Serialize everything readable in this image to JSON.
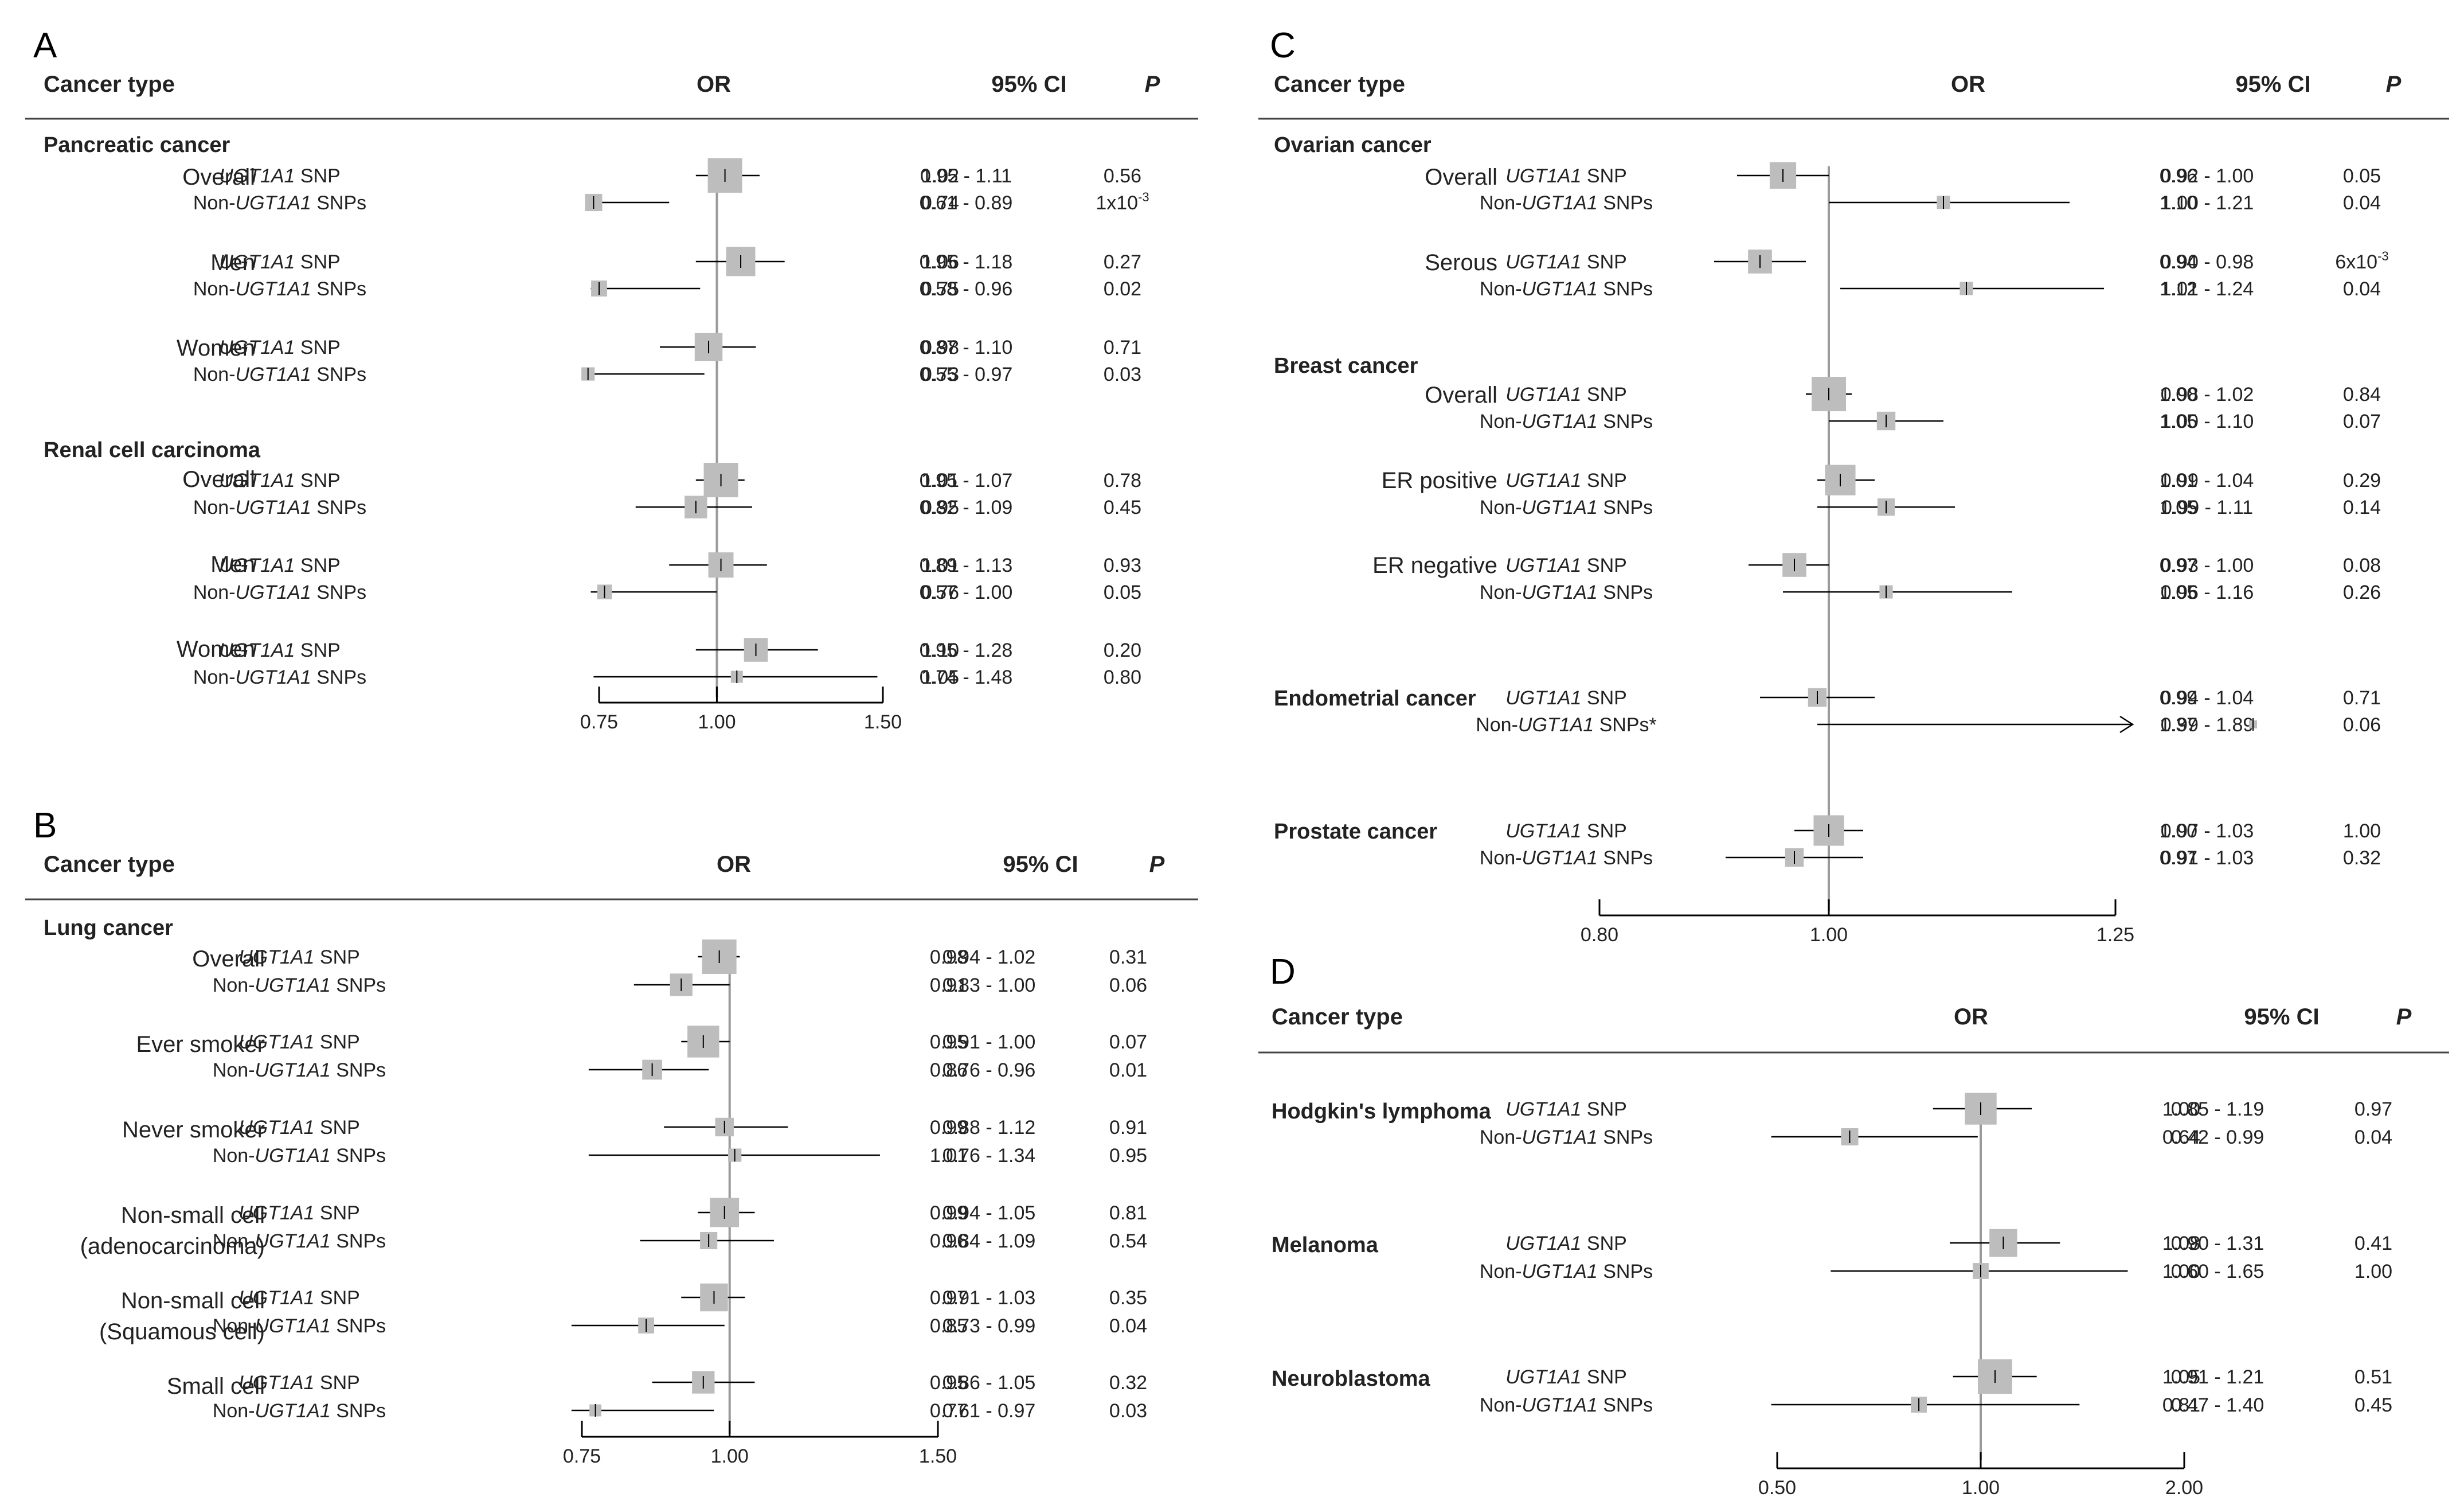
{
  "header_labels": {
    "cancer_type": "Cancer type",
    "or": "OR",
    "ci": "95% CI",
    "p": "P"
  },
  "snp_labels": {
    "gene": "UGT1A1",
    "snp_suffix": " SNP",
    "non_prefix": "Non-",
    "non_suffix": " SNPs"
  },
  "chart_data": [
    {
      "panel": "A",
      "type": "forest",
      "xlabel": "OR",
      "ticks": [
        "0.75",
        "1.00",
        "1.50"
      ],
      "tick_values": [
        0.75,
        1.0,
        1.5
      ],
      "reference": 1.0,
      "groups": [
        {
          "title": "Pancreatic cancer",
          "subgroups": [
            {
              "label": [
                "Overall"
              ],
              "rows": [
                {
                  "snp": "UGT1A1",
                  "or": "1.02",
                  "ci_lo": "0.95",
                  "ci_hi": "1.11",
                  "ci_text": "0.95   - 1.11",
                  "p": "0.56",
                  "w": 1.0
                },
                {
                  "snp": "Non-UGT1A1",
                  "or": "0.74",
                  "ci_lo": "0.61",
                  "ci_hi": "0.89",
                  "ci_text": "0.61   - 0.89",
                  "p": "1x10",
                  "p_exp": "-3",
                  "w": 0.35
                }
              ]
            },
            {
              "label": [
                "Men"
              ],
              "rows": [
                {
                  "snp": "UGT1A1",
                  "or": "1.06",
                  "ci_lo": "0.95",
                  "ci_hi": "1.18",
                  "ci_text": "0.95 - 1.18",
                  "p": "0.27",
                  "w": 0.8
                },
                {
                  "snp": "Non-UGT1A1",
                  "or": "0.75",
                  "ci_lo": "0.58",
                  "ci_hi": "0.96",
                  "ci_text": "0.58 - 0.96",
                  "p": "0.02",
                  "w": 0.3
                }
              ]
            },
            {
              "label": [
                "Women"
              ],
              "rows": [
                {
                  "snp": "UGT1A1",
                  "or": "0.98",
                  "ci_lo": "0.87",
                  "ci_hi": "1.10",
                  "ci_text": "0.87 - 1.10",
                  "p": "0.71",
                  "w": 0.75
                },
                {
                  "snp": "Non-UGT1A1",
                  "or": "0.73",
                  "ci_lo": "0.55",
                  "ci_hi": "0.97",
                  "ci_text": "0.55 - 0.97",
                  "p": "0.03",
                  "w": 0.2
                }
              ]
            }
          ]
        },
        {
          "title": "Renal cell carcinoma",
          "subgroups": [
            {
              "label": [
                "Overall"
              ],
              "rows": [
                {
                  "snp": "UGT1A1",
                  "or": "1.01",
                  "ci_lo": "0.95",
                  "ci_hi": "1.07",
                  "ci_text": "0.95 - 1.07",
                  "p": "0.78",
                  "w": 1.0
                },
                {
                  "snp": "Non-UGT1A1",
                  "or": "0.95",
                  "ci_lo": "0.82",
                  "ci_hi": "1.09",
                  "ci_text": "0.82 - 1.09",
                  "p": "0.45",
                  "w": 0.55
                }
              ]
            },
            {
              "label": [
                "Men"
              ],
              "rows": [
                {
                  "snp": "UGT1A1",
                  "or": "1.01",
                  "ci_lo": "0.89",
                  "ci_hi": "1.13",
                  "ci_text": "0.89 - 1.13",
                  "p": "0.93",
                  "w": 0.65
                },
                {
                  "snp": "Non-UGT1A1",
                  "or": "0.76",
                  "ci_lo": "0.57",
                  "ci_hi": "1.00",
                  "ci_text": "0.57 - 1.00",
                  "p": "0.05",
                  "w": 0.25
                }
              ]
            },
            {
              "label": [
                "Women"
              ],
              "rows": [
                {
                  "snp": "UGT1A1",
                  "or": "1.10",
                  "ci_lo": "0.95",
                  "ci_hi": "1.28",
                  "ci_text": "0.95 - 1.28",
                  "p": "0.20",
                  "w": 0.6
                },
                {
                  "snp": "Non-UGT1A1",
                  "or": "1.05",
                  "ci_lo": "0.74",
                  "ci_hi": "1.48",
                  "ci_text": "0.74 - 1.48",
                  "p": "0.80",
                  "w": 0.15
                }
              ]
            }
          ]
        }
      ]
    },
    {
      "panel": "B",
      "type": "forest",
      "xlabel": "OR",
      "ticks": [
        "0.75",
        "1.00",
        "1.50"
      ],
      "tick_values": [
        0.75,
        1.0,
        1.5
      ],
      "reference": 1.0,
      "groups": [
        {
          "title": "Lung cancer",
          "subgroups": [
            {
              "label": [
                "Overall"
              ],
              "rows": [
                {
                  "snp": "UGT1A1",
                  "or": "0.98",
                  "ci_lo": "0.94",
                  "ci_hi": "1.02",
                  "ci_text": "0.94   - 1.02",
                  "p": "0.31",
                  "w": 1.0
                },
                {
                  "snp": "Non-UGT1A1",
                  "or": "0.91",
                  "ci_lo": "0.83",
                  "ci_hi": "1.00",
                  "ci_text": "0.83   - 1.00",
                  "p": "0.06",
                  "w": 0.55
                }
              ]
            },
            {
              "label": [
                "Ever smoker"
              ],
              "rows": [
                {
                  "snp": "UGT1A1",
                  "or": "0.95",
                  "ci_lo": "0.91",
                  "ci_hi": "1.00",
                  "ci_text": "0.91 - 1.00",
                  "p": "0.07",
                  "w": 0.9
                },
                {
                  "snp": "Non-UGT1A1",
                  "or": "0.86",
                  "ci_lo": "0.76",
                  "ci_hi": "0.96",
                  "ci_text": "0.76 - 0.96",
                  "p": "0.01",
                  "w": 0.45
                }
              ]
            },
            {
              "label": [
                "Never smoker"
              ],
              "rows": [
                {
                  "snp": "UGT1A1",
                  "or": "0.99",
                  "ci_lo": "0.88",
                  "ci_hi": "1.12",
                  "ci_text": "0.88 - 1.12",
                  "p": "0.91",
                  "w": 0.4
                },
                {
                  "snp": "Non-UGT1A1",
                  "or": "1.01",
                  "ci_lo": "0.76",
                  "ci_hi": "1.34",
                  "ci_text": "0.76 - 1.34",
                  "p": "0.95",
                  "w": 0.2
                }
              ]
            },
            {
              "label": [
                "Non-small cell",
                "(adenocarcinoma)"
              ],
              "rows": [
                {
                  "snp": "UGT1A1",
                  "or": "0.99",
                  "ci_lo": "0.94",
                  "ci_hi": "1.05",
                  "ci_text": "0.94 - 1.05",
                  "p": "0.81",
                  "w": 0.8
                },
                {
                  "snp": "Non-UGT1A1",
                  "or": "0.96",
                  "ci_lo": "0.84",
                  "ci_hi": "1.09",
                  "ci_text": "0.84 - 1.09",
                  "p": "0.54",
                  "w": 0.35
                }
              ]
            },
            {
              "label": [
                "Non-small cell",
                "(Squamous cell)"
              ],
              "rows": [
                {
                  "snp": "UGT1A1",
                  "or": "0.97",
                  "ci_lo": "0.91",
                  "ci_hi": "1.03",
                  "ci_text": "0.91 - 1.03",
                  "p": "0.35",
                  "w": 0.75
                },
                {
                  "snp": "Non-UGT1A1",
                  "or": "0.85",
                  "ci_lo": "0.73",
                  "ci_hi": "0.99",
                  "ci_text": "0.73 - 0.99",
                  "p": "0.04",
                  "w": 0.3
                }
              ]
            },
            {
              "label": [
                "Small cell"
              ],
              "rows": [
                {
                  "snp": "UGT1A1",
                  "or": "0.95",
                  "ci_lo": "0.86",
                  "ci_hi": "1.05",
                  "ci_text": "0.86 - 1.05",
                  "p": "0.32",
                  "w": 0.55
                },
                {
                  "snp": "Non-UGT1A1",
                  "or": "0.77",
                  "ci_lo": "0.61",
                  "ci_hi": "0.97",
                  "ci_text": "0.61 - 0.97",
                  "p": "0.03",
                  "w": 0.15
                }
              ]
            }
          ]
        }
      ]
    },
    {
      "panel": "C",
      "type": "forest",
      "xlabel": "OR",
      "ticks": [
        "0.80",
        "1.00",
        "1.25"
      ],
      "tick_values": [
        0.8,
        1.0,
        1.25
      ],
      "reference": 1.0,
      "groups": [
        {
          "title": "Ovarian cancer",
          "subgroups": [
            {
              "label": [
                "Overall"
              ],
              "rows": [
                {
                  "snp": "UGT1A1",
                  "or": "0.96",
                  "ci_lo": "0.92",
                  "ci_hi": "1.00",
                  "ci_text": "0.92   - 1.00",
                  "p": "0.05",
                  "w": 0.7
                },
                {
                  "snp": "Non-UGT1A1",
                  "or": "1.10",
                  "ci_lo": "1.00",
                  "ci_hi": "1.21",
                  "ci_text": "1.00   - 1.21",
                  "p": "0.04",
                  "w": 0.2
                }
              ]
            },
            {
              "label": [
                "Serous"
              ],
              "rows": [
                {
                  "snp": "UGT1A1",
                  "or": "0.94",
                  "ci_lo": "0.90",
                  "ci_hi": "0.98",
                  "ci_text": "0.90 - 0.98",
                  "p": "6x10",
                  "p_exp": "-3",
                  "w": 0.6
                },
                {
                  "snp": "Non-UGT1A1",
                  "or": "1.12",
                  "ci_lo": "1.01",
                  "ci_hi": "1.24",
                  "ci_text": "1.01 - 1.24",
                  "p": "0.04",
                  "w": 0.2
                }
              ]
            }
          ]
        },
        {
          "title": "Breast cancer",
          "subgroups": [
            {
              "label": [
                "Overall"
              ],
              "rows": [
                {
                  "snp": "UGT1A1",
                  "or": "1.00",
                  "ci_lo": "0.98",
                  "ci_hi": "1.02",
                  "ci_text": "0.98 - 1.02",
                  "p": "0.84",
                  "w": 1.0
                },
                {
                  "snp": "Non-UGT1A1",
                  "or": "1.05",
                  "ci_lo": "1.00",
                  "ci_hi": "1.10",
                  "ci_text": "1.00 - 1.10",
                  "p": "0.07",
                  "w": 0.4
                }
              ]
            },
            {
              "label": [
                "ER positive"
              ],
              "rows": [
                {
                  "snp": "UGT1A1",
                  "or": "1.01",
                  "ci_lo": "0.99",
                  "ci_hi": "1.04",
                  "ci_text": "0.99 - 1.04",
                  "p": "0.29",
                  "w": 0.85
                },
                {
                  "snp": "Non-UGT1A1",
                  "or": "1.05",
                  "ci_lo": "0.99",
                  "ci_hi": "1.11",
                  "ci_text": "0.99 - 1.11",
                  "p": "0.14",
                  "w": 0.35
                }
              ]
            },
            {
              "label": [
                "ER negative"
              ],
              "rows": [
                {
                  "snp": "UGT1A1",
                  "or": "0.97",
                  "ci_lo": "0.93",
                  "ci_hi": "1.00",
                  "ci_text": "0.93 - 1.00",
                  "p": "0.08",
                  "w": 0.6
                },
                {
                  "snp": "Non-UGT1A1",
                  "or": "1.05",
                  "ci_lo": "0.96",
                  "ci_hi": "1.16",
                  "ci_text": "0.96 - 1.16",
                  "p": "0.26",
                  "w": 0.2
                }
              ]
            }
          ]
        },
        {
          "title": "Endometrial cancer",
          "inline": true,
          "subgroups": [
            {
              "label": [],
              "rows": [
                {
                  "snp": "UGT1A1",
                  "or": "0.99",
                  "ci_lo": "0.94",
                  "ci_hi": "1.04",
                  "ci_text": "0.94 - 1.04",
                  "p": "0.71",
                  "w": 0.4
                },
                {
                  "snp": "Non-UGT1A1",
                  "or": "1.37",
                  "ci_lo": "0.99",
                  "ci_hi": "1.89",
                  "ci_text": "0.99 - 1.89",
                  "p": "0.06",
                  "w": 0.0,
                  "arrow": true,
                  "star": "*"
                }
              ]
            }
          ]
        },
        {
          "title": "Prostate cancer",
          "inline": true,
          "subgroups": [
            {
              "label": [],
              "rows": [
                {
                  "snp": "UGT1A1",
                  "or": "1.00",
                  "ci_lo": "0.97",
                  "ci_hi": "1.03",
                  "ci_text": "0.97 - 1.03",
                  "p": "1.00",
                  "w": 0.85
                },
                {
                  "snp": "Non-UGT1A1",
                  "or": "0.97",
                  "ci_lo": "0.91",
                  "ci_hi": "1.03",
                  "ci_text": "0.91 - 1.03",
                  "p": "0.32",
                  "w": 0.4
                }
              ]
            }
          ]
        }
      ]
    },
    {
      "panel": "D",
      "type": "forest",
      "xlabel": "OR",
      "ticks": [
        "0.50",
        "1.00",
        "2.00"
      ],
      "tick_values": [
        0.5,
        1.0,
        2.0
      ],
      "reference": 1.0,
      "groups": [
        {
          "title": "Hodgkin's lymphoma",
          "inline": true,
          "subgroups": [
            {
              "label": [],
              "rows": [
                {
                  "snp": "UGT1A1",
                  "or": "1.00",
                  "ci_lo": "0.85",
                  "ci_hi": "1.19",
                  "ci_text": "0.85   - 1.19",
                  "p": "0.97",
                  "w": 0.9
                },
                {
                  "snp": "Non-UGT1A1",
                  "or": "0.64",
                  "ci_lo": "0.42",
                  "ci_hi": "0.99",
                  "ci_text": "0.42   - 0.99",
                  "p": "0.04",
                  "w": 0.35
                }
              ]
            }
          ]
        },
        {
          "title": "Melanoma",
          "inline": true,
          "subgroups": [
            {
              "label": [],
              "rows": [
                {
                  "snp": "UGT1A1",
                  "or": "1.08",
                  "ci_lo": "0.90",
                  "ci_hi": "1.31",
                  "ci_text": "0.90 - 1.31",
                  "p": "0.41",
                  "w": 0.75
                },
                {
                  "snp": "Non-UGT1A1",
                  "or": "1.00",
                  "ci_lo": "0.60",
                  "ci_hi": "1.65",
                  "ci_text": "0.60 - 1.65",
                  "p": "1.00",
                  "w": 0.3
                }
              ]
            }
          ]
        },
        {
          "title": "Neuroblastoma",
          "inline": true,
          "subgroups": [
            {
              "label": [],
              "rows": [
                {
                  "snp": "UGT1A1",
                  "or": "1.05",
                  "ci_lo": "0.91",
                  "ci_hi": "1.21",
                  "ci_text": "0.91 - 1.21",
                  "p": "0.51",
                  "w": 1.0
                },
                {
                  "snp": "Non-UGT1A1",
                  "or": "0.81",
                  "ci_lo": "0.47",
                  "ci_hi": "1.40",
                  "ci_text": "0.47 - 1.40",
                  "p": "0.45",
                  "w": 0.3
                }
              ]
            }
          ]
        }
      ]
    }
  ],
  "colors": {
    "square": "#bdbdbd",
    "line": "#000000",
    "refline": "#9a9a9a",
    "text": "#222222"
  }
}
